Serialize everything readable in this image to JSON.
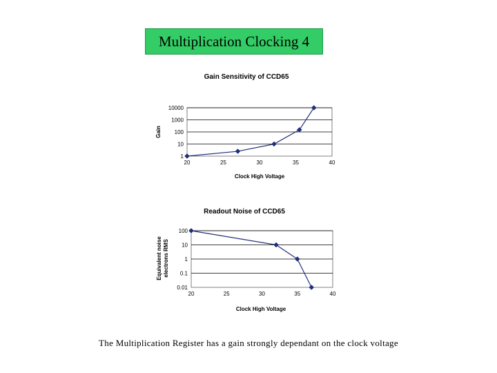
{
  "slide": {
    "title": "Multiplication Clocking 4",
    "caption": "The Multiplication Register has a gain strongly dependant on the clock voltage"
  },
  "colors": {
    "title_bg": "#33cc66",
    "series": "#1f2f7a",
    "grid": "#000000",
    "axis": "#808080"
  },
  "chart_data": [
    {
      "type": "line",
      "title": "Gain Sensitivity of CCD65",
      "xlabel": "Clock High Voltage",
      "ylabel": "Gain",
      "yscale": "log",
      "xlim": [
        20,
        40
      ],
      "ylim": [
        1,
        10000
      ],
      "xticks": [
        "20",
        "25",
        "30",
        "35",
        "40"
      ],
      "yticks": [
        "1",
        "10",
        "100",
        "1000",
        "10000"
      ],
      "grid": true,
      "series": [
        {
          "x": [
            20,
            27,
            32,
            35.5,
            37.5
          ],
          "y": [
            1,
            2.5,
            10,
            150,
            10000
          ]
        }
      ]
    },
    {
      "type": "line",
      "title": "Readout Noise of CCD65",
      "xlabel": "Clock High Voltage",
      "ylabel_lines": [
        "Equivalent noise",
        "electrons RMS"
      ],
      "yscale": "log",
      "xlim": [
        20,
        40
      ],
      "ylim": [
        0.01,
        100
      ],
      "xticks": [
        "20",
        "25",
        "30",
        "35",
        "40"
      ],
      "yticks": [
        "0.01",
        "0.1",
        "1",
        "10",
        "100"
      ],
      "grid": true,
      "series": [
        {
          "x": [
            20,
            32,
            35,
            37
          ],
          "y": [
            100,
            10,
            1,
            0.01
          ]
        }
      ]
    }
  ]
}
